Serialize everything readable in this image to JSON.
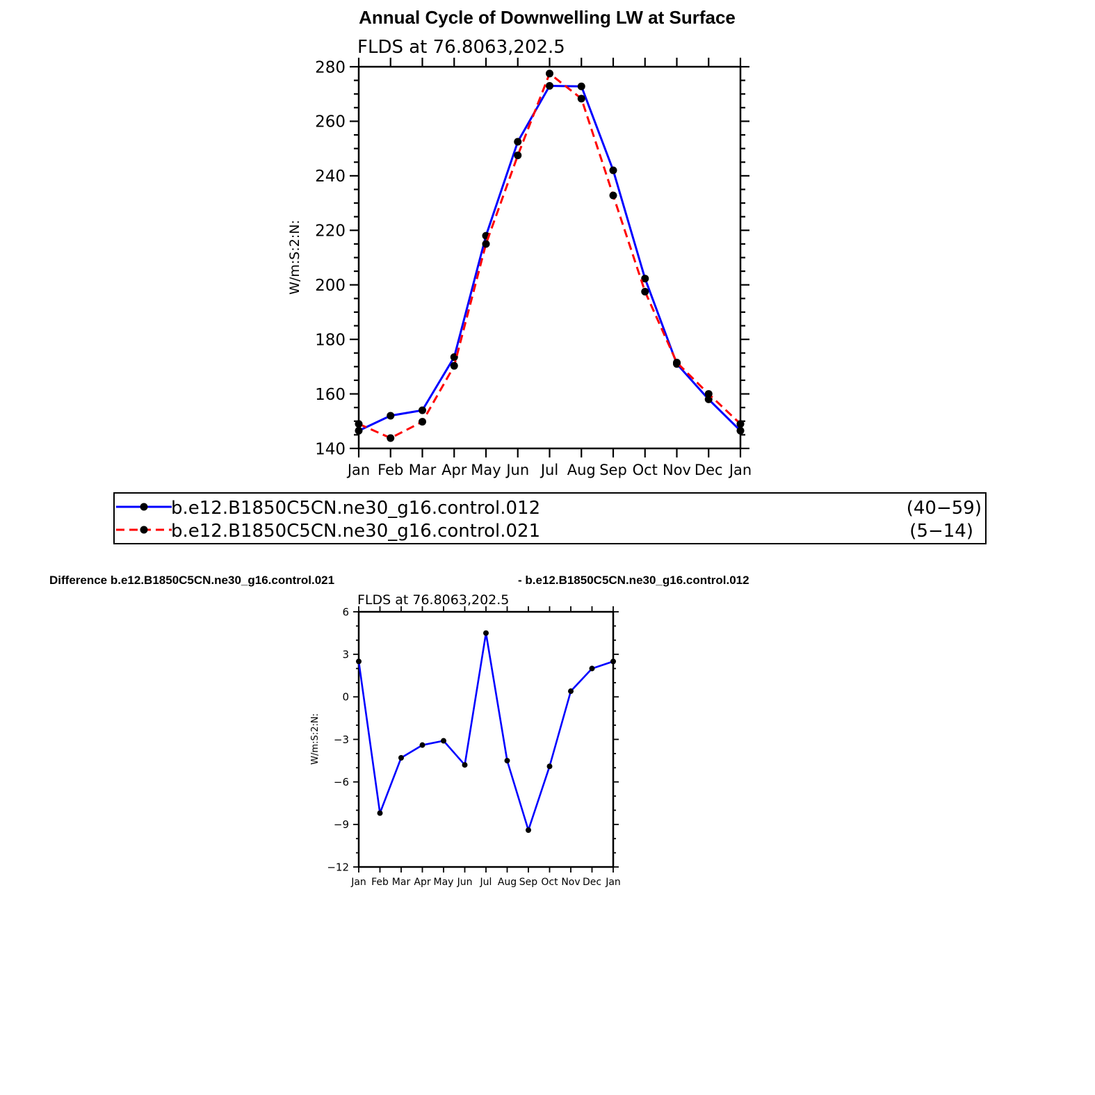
{
  "colors": {
    "series_a": "#0000ff",
    "series_b": "#ff0000",
    "marker": "#000000",
    "frame": "#000000"
  },
  "top": {
    "title": "Annual Cycle of Downwelling LW at Surface",
    "subtitle": "FLDS at 76.8063,202.5",
    "ylabel": "W/m:S:2:N:"
  },
  "legend": {
    "entries": [
      {
        "name": "b.e12.B1850C5CN.ne30_g16.control.012",
        "years": "(40−59)",
        "style": "solid",
        "color": "#0000ff"
      },
      {
        "name": "b.e12.B1850C5CN.ne30_g16.control.021",
        "years": "(5−14)",
        "style": "dashed",
        "color": "#ff0000"
      }
    ]
  },
  "bottom": {
    "title_left": "Difference b.e12.B1850C5CN.ne30_g16.control.021",
    "title_right": "- b.e12.B1850C5CN.ne30_g16.control.012",
    "subtitle": "FLDS at 76.8063,202.5",
    "ylabel": "W/m:S:2:N:"
  },
  "chart_data": [
    {
      "type": "line",
      "title": "Annual Cycle of Downwelling LW at Surface",
      "subtitle": "FLDS at 76.8063,202.5",
      "xlabel": "",
      "ylabel": "W/m:S:2:N:",
      "categories": [
        "Jan",
        "Feb",
        "Mar",
        "Apr",
        "May",
        "Jun",
        "Jul",
        "Aug",
        "Sep",
        "Oct",
        "Nov",
        "Dec",
        "Jan"
      ],
      "ylim": [
        140,
        280
      ],
      "yticks": [
        140,
        160,
        180,
        200,
        220,
        240,
        260,
        280
      ],
      "grid": false,
      "legend_position": "below",
      "series": [
        {
          "name": "b.e12.B1850C5CN.ne30_g16.control.012",
          "values": [
            146.5,
            152.0,
            154.0,
            173.5,
            218.0,
            252.5,
            273.0,
            272.8,
            242.0,
            202.3,
            171.0,
            158.0,
            146.5
          ]
        },
        {
          "name": "b.e12.B1850C5CN.ne30_g16.control.021",
          "values": [
            149.0,
            143.8,
            149.8,
            170.3,
            215.0,
            247.5,
            277.5,
            268.3,
            232.8,
            197.5,
            171.5,
            160.0,
            149.0
          ]
        }
      ]
    },
    {
      "type": "line",
      "title": "Difference b.e12.B1850C5CN.ne30_g16.control.021 - b.e12.B1850C5CN.ne30_g16.control.012",
      "subtitle": "FLDS at 76.8063,202.5",
      "xlabel": "",
      "ylabel": "W/m:S:2:N:",
      "categories": [
        "Jan",
        "Feb",
        "Mar",
        "Apr",
        "May",
        "Jun",
        "Jul",
        "Aug",
        "Sep",
        "Oct",
        "Nov",
        "Dec",
        "Jan"
      ],
      "ylim": [
        -12,
        6
      ],
      "yticks": [
        -12,
        -9,
        -6,
        -3,
        0,
        3,
        6
      ],
      "ytick_labels": [
        "−12",
        "−9",
        "−6",
        "−3",
        "0",
        "3",
        "6"
      ],
      "grid": false,
      "series": [
        {
          "values": [
            2.5,
            -8.2,
            -4.3,
            -3.4,
            -3.1,
            -4.8,
            4.5,
            -4.5,
            -9.4,
            -4.9,
            0.4,
            2.0,
            2.5
          ]
        }
      ]
    }
  ]
}
